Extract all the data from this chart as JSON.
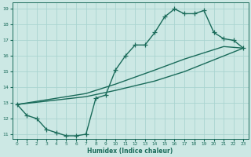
{
  "xlabel": "Humidex (Indice chaleur)",
  "bg_color": "#cce8e4",
  "grid_color": "#aad4d0",
  "line_color": "#1a6b5a",
  "xlim": [
    -0.5,
    23.5
  ],
  "ylim": [
    10.7,
    19.4
  ],
  "xticks": [
    0,
    1,
    2,
    3,
    4,
    5,
    6,
    7,
    8,
    9,
    10,
    11,
    12,
    13,
    14,
    15,
    16,
    17,
    18,
    19,
    20,
    21,
    22,
    23
  ],
  "yticks": [
    11,
    12,
    13,
    14,
    15,
    16,
    17,
    18,
    19
  ],
  "line1_x": [
    0,
    1,
    2,
    3,
    4,
    5,
    6,
    7,
    8,
    9,
    10,
    11,
    12,
    13,
    14,
    15,
    16,
    17,
    18,
    19,
    20,
    21,
    22,
    23
  ],
  "line1_y": [
    12.9,
    12.2,
    12.0,
    11.3,
    11.1,
    10.9,
    10.9,
    11.0,
    13.3,
    13.5,
    15.1,
    16.0,
    16.7,
    16.7,
    17.5,
    18.5,
    19.0,
    18.7,
    18.7,
    18.9,
    17.5,
    17.1,
    17.0,
    16.5
  ],
  "line2_x": [
    0,
    7,
    10,
    14,
    17,
    19,
    21,
    23
  ],
  "line2_y": [
    12.9,
    13.4,
    13.8,
    14.4,
    15.0,
    15.5,
    16.0,
    16.5
  ],
  "line3_x": [
    0,
    7,
    10,
    14,
    17,
    19,
    21,
    23
  ],
  "line3_y": [
    12.9,
    13.6,
    14.2,
    15.1,
    15.8,
    16.2,
    16.6,
    16.5
  ],
  "linewidth": 1.0,
  "markersize": 4.0
}
